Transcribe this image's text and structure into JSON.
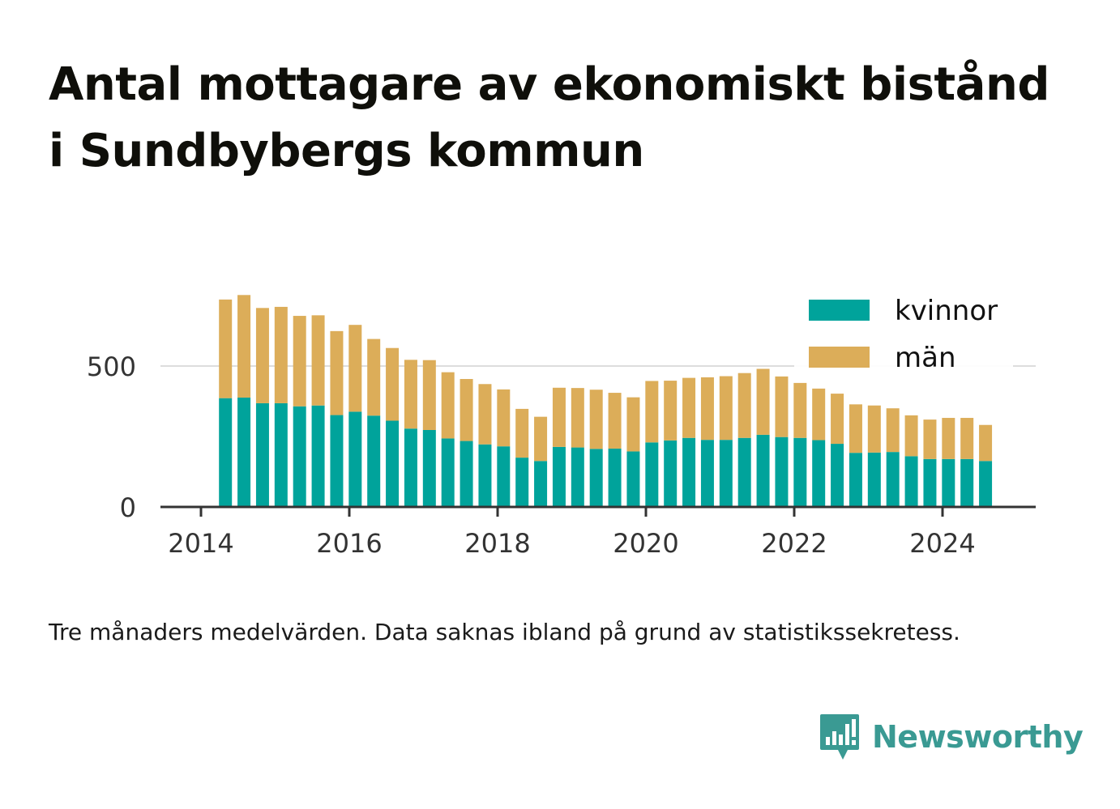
{
  "title": "Antal mottagare av ekonomiskt bistånd i Sundbybergs kommun",
  "caption": "Tre månaders medelvärden. Data saknas ibland på grund av statistikssekretess.",
  "brand": {
    "name": "Newsworthy",
    "color": "#3a9a93",
    "icon": "bar-chart-speech-bubble-icon"
  },
  "chart_data": {
    "type": "bar",
    "stacked": true,
    "xlim": [
      2013.7,
      2025.3
    ],
    "ylim": [
      0,
      800
    ],
    "yticks": [
      0,
      500
    ],
    "xticks": [
      2014,
      2016,
      2018,
      2020,
      2022,
      2024
    ],
    "grid": "horizontal",
    "legend_position": "top-right",
    "x": [
      2014.33,
      2014.58,
      2014.83,
      2015.08,
      2015.33,
      2015.58,
      2015.83,
      2016.08,
      2016.33,
      2016.58,
      2016.83,
      2017.08,
      2017.33,
      2017.58,
      2017.83,
      2018.08,
      2018.33,
      2018.58,
      2018.83,
      2019.08,
      2019.33,
      2019.58,
      2019.83,
      2020.08,
      2020.33,
      2020.58,
      2020.83,
      2021.08,
      2021.33,
      2021.58,
      2021.83,
      2022.08,
      2022.33,
      2022.58,
      2022.83,
      2023.08,
      2023.33,
      2023.58,
      2023.83,
      2024.08,
      2024.33,
      2024.58
    ],
    "series": [
      {
        "name": "kvinnor",
        "color": "#00a39b",
        "values": [
          386,
          388,
          368,
          368,
          357,
          360,
          326,
          338,
          324,
          306,
          278,
          273,
          243,
          234,
          222,
          215,
          175,
          163,
          213,
          211,
          206,
          207,
          197,
          229,
          236,
          245,
          238,
          238,
          245,
          256,
          248,
          245,
          237,
          224,
          192,
          193,
          195,
          180,
          170,
          170,
          170,
          163
        ]
      },
      {
        "name": "män",
        "color": "#dcad59",
        "values": [
          350,
          364,
          338,
          342,
          321,
          320,
          298,
          308,
          272,
          258,
          244,
          248,
          235,
          220,
          214,
          202,
          173,
          157,
          210,
          211,
          210,
          198,
          192,
          218,
          212,
          213,
          222,
          226,
          230,
          234,
          215,
          195,
          183,
          178,
          172,
          167,
          155,
          145,
          140,
          146,
          146,
          128
        ]
      }
    ]
  }
}
